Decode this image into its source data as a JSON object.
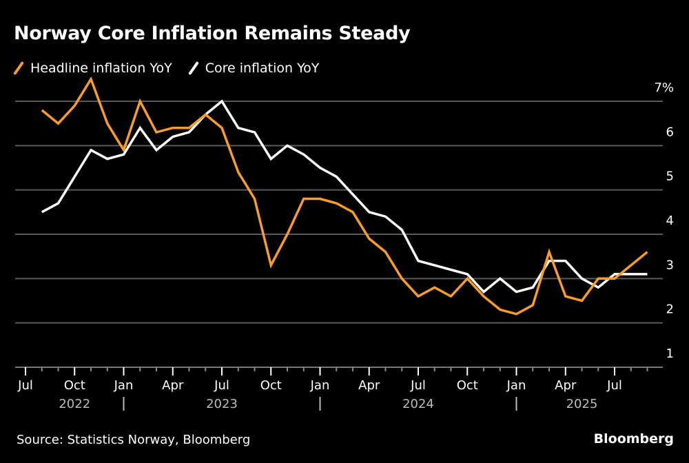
{
  "title": "Norway Core Inflation Remains Steady",
  "legend": [
    {
      "label": "Headline inflation YoY",
      "color": "#F99D2A"
    },
    {
      "label": "Core inflation YoY",
      "color": "#FFFFFF"
    }
  ],
  "source": "Source: Statistics Norway, Bloomberg",
  "brand": "Bloomberg",
  "chart_data": {
    "type": "line",
    "title": "Norway Core Inflation Remains Steady",
    "xlabel": "",
    "ylabel": "",
    "y_unit_suffix": "%",
    "ylim": [
      1,
      7
    ],
    "yticks": [
      1,
      2,
      3,
      4,
      5,
      6,
      7
    ],
    "ytick_labels": [
      "1",
      "2",
      "3",
      "4",
      "5",
      "6",
      "7%"
    ],
    "grid": true,
    "legend_position": "top-left",
    "x_start": "2022-07",
    "x_end": "2025-10",
    "x_major_ticks": [
      {
        "month": "2022-07",
        "label": "Jul"
      },
      {
        "month": "2022-10",
        "label": "Oct"
      },
      {
        "month": "2023-01",
        "label": "Jan"
      },
      {
        "month": "2023-04",
        "label": "Apr"
      },
      {
        "month": "2023-07",
        "label": "Jul"
      },
      {
        "month": "2023-10",
        "label": "Oct"
      },
      {
        "month": "2024-01",
        "label": "Jan"
      },
      {
        "month": "2024-04",
        "label": "Apr"
      },
      {
        "month": "2024-07",
        "label": "Jul"
      },
      {
        "month": "2024-10",
        "label": "Oct"
      },
      {
        "month": "2025-01",
        "label": "Jan"
      },
      {
        "month": "2025-04",
        "label": "Apr"
      },
      {
        "month": "2025-07",
        "label": "Jul"
      }
    ],
    "year_labels": [
      {
        "label": "2022",
        "center_month": "2022-10"
      },
      {
        "label": "2023",
        "center_month": "2023-07"
      },
      {
        "label": "2024",
        "center_month": "2024-07"
      },
      {
        "label": "2025",
        "center_month": "2025-05"
      }
    ],
    "year_separators": [
      "2023-01",
      "2024-01",
      "2025-01"
    ],
    "x": [
      "2022-08",
      "2022-09",
      "2022-10",
      "2022-11",
      "2022-12",
      "2023-01",
      "2023-02",
      "2023-03",
      "2023-04",
      "2023-05",
      "2023-06",
      "2023-07",
      "2023-08",
      "2023-09",
      "2023-10",
      "2023-11",
      "2023-12",
      "2024-01",
      "2024-02",
      "2024-03",
      "2024-04",
      "2024-05",
      "2024-06",
      "2024-07",
      "2024-08",
      "2024-09",
      "2024-10",
      "2024-11",
      "2024-12",
      "2025-01",
      "2025-02",
      "2025-03",
      "2025-04",
      "2025-05",
      "2025-06",
      "2025-07",
      "2025-08",
      "2025-09"
    ],
    "series": [
      {
        "name": "Headline inflation YoY",
        "color": "#F99D2A",
        "values": [
          6.8,
          6.5,
          6.9,
          7.5,
          6.5,
          5.9,
          7.0,
          6.3,
          6.4,
          6.4,
          6.7,
          6.4,
          5.4,
          4.8,
          3.3,
          4.0,
          4.8,
          4.8,
          4.7,
          4.5,
          3.9,
          3.6,
          3.0,
          2.6,
          2.8,
          2.6,
          3.0,
          2.6,
          2.3,
          2.2,
          2.4,
          3.6,
          2.6,
          2.5,
          3.0,
          3.0,
          3.3,
          3.6
        ]
      },
      {
        "name": "Core inflation YoY",
        "color": "#FFFFFF",
        "values": [
          4.5,
          4.7,
          5.3,
          5.9,
          5.7,
          5.8,
          6.4,
          5.9,
          6.2,
          6.3,
          6.7,
          7.0,
          6.4,
          6.3,
          5.7,
          6.0,
          5.8,
          5.5,
          5.3,
          4.9,
          4.5,
          4.4,
          4.1,
          3.4,
          3.3,
          3.2,
          3.1,
          2.7,
          3.0,
          2.7,
          2.8,
          3.4,
          3.4,
          3.0,
          2.8,
          3.1,
          3.1,
          3.1
        ]
      }
    ]
  }
}
